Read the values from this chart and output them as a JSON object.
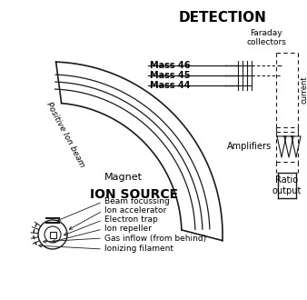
{
  "title_detection": "DETECTION",
  "title_ion_source": "ION SOURCE",
  "label_faraday": "Faraday\ncollectors",
  "label_mass46": "Mass 46",
  "label_mass45": "Mass 45",
  "label_mass44": "Mass 44",
  "label_magnet": "Magnet",
  "label_positive_ion": "Positive Ion beam",
  "label_amplifiers": "Amplifiers",
  "label_current": "current",
  "label_ratio": "Ratio\noutput",
  "label_beam_focussing": "Beam focussing",
  "label_ion_accelerator": "Ion accelerator",
  "label_electron_trap": "Electron trap",
  "label_ion_repeller": "Ion repeller",
  "label_gas_inflow": "Gas inflow (from behind)",
  "label_ionizing": "Ionizing filament",
  "bg_color": "#ffffff",
  "line_color": "#1a1a1a",
  "figsize": [
    3.38,
    3.3
  ],
  "dpi": 100
}
